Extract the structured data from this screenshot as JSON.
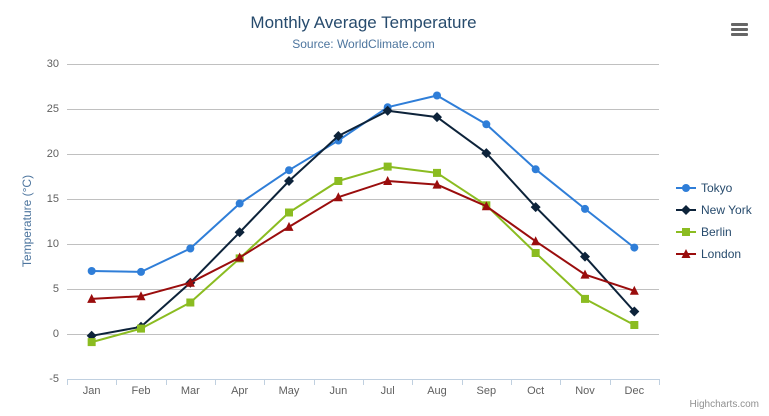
{
  "chart_data": {
    "type": "line",
    "title": "Monthly Average Temperature",
    "subtitle": "Source: WorldClimate.com",
    "xlabel": "",
    "ylabel": "Temperature (°C)",
    "ylim": [
      -5,
      30
    ],
    "yticks": [
      30,
      25,
      20,
      15,
      10,
      5,
      0,
      -5
    ],
    "grid": true,
    "legend_position": "right",
    "categories": [
      "Jan",
      "Feb",
      "Mar",
      "Apr",
      "May",
      "Jun",
      "Jul",
      "Aug",
      "Sep",
      "Oct",
      "Nov",
      "Dec"
    ],
    "series": [
      {
        "name": "Tokyo",
        "color": "#2f7ed8",
        "marker": "circle",
        "values": [
          7.0,
          6.9,
          9.5,
          14.5,
          18.2,
          21.5,
          25.2,
          26.5,
          23.3,
          18.3,
          13.9,
          9.6
        ]
      },
      {
        "name": "New York",
        "color": "#0d233a",
        "marker": "diamond",
        "values": [
          -0.2,
          0.8,
          5.7,
          11.3,
          17.0,
          22.0,
          24.8,
          24.1,
          20.1,
          14.1,
          8.6,
          2.5
        ]
      },
      {
        "name": "Berlin",
        "color": "#8bbc21",
        "marker": "square",
        "values": [
          -0.9,
          0.6,
          3.5,
          8.4,
          13.5,
          17.0,
          18.6,
          17.9,
          14.3,
          9.0,
          3.9,
          1.0
        ]
      },
      {
        "name": "London",
        "color": "#9a0d0d",
        "marker": "triangle",
        "values": [
          3.9,
          4.2,
          5.7,
          8.5,
          11.9,
          15.2,
          17.0,
          16.6,
          14.2,
          10.3,
          6.6,
          4.8
        ]
      }
    ],
    "axis_style": {
      "gridline_color": "#c0c0c0",
      "axis_line_color": "#c0d0e0",
      "tick_color": "#c0d0e0"
    }
  },
  "credits": {
    "label": "Highcharts.com"
  }
}
